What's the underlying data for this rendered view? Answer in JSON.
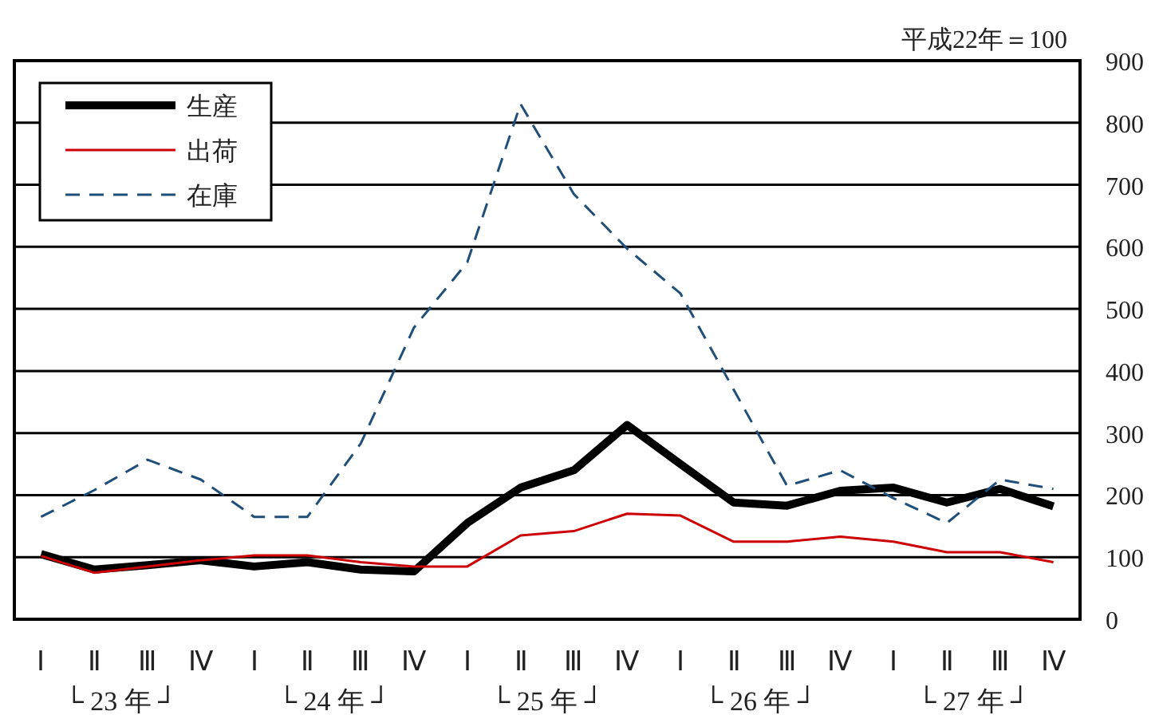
{
  "chart_data": {
    "type": "line",
    "categories": [
      "Ⅰ",
      "Ⅱ",
      "Ⅲ",
      "Ⅳ",
      "Ⅰ",
      "Ⅱ",
      "Ⅲ",
      "Ⅳ",
      "Ⅰ",
      "Ⅱ",
      "Ⅲ",
      "Ⅳ",
      "Ⅰ",
      "Ⅱ",
      "Ⅲ",
      "Ⅳ",
      "Ⅰ",
      "Ⅱ",
      "Ⅲ",
      "Ⅳ"
    ],
    "series": [
      {
        "name": "生産",
        "color": "#000000",
        "line_style": "solid",
        "values": [
          105,
          80,
          87,
          95,
          85,
          92,
          80,
          77,
          155,
          212,
          240,
          313,
          250,
          188,
          183,
          207,
          212,
          188,
          210,
          182
        ]
      },
      {
        "name": "出荷",
        "color": "#cc0000",
        "line_style": "solid",
        "values": [
          102,
          75,
          85,
          95,
          103,
          103,
          92,
          85,
          85,
          135,
          142,
          170,
          167,
          125,
          125,
          133,
          125,
          108,
          108,
          92
        ]
      },
      {
        "name": "在庫",
        "color": "#1f4e79",
        "line_style": "dashed",
        "values": [
          165,
          208,
          257,
          225,
          165,
          165,
          283,
          470,
          575,
          830,
          685,
          597,
          525,
          370,
          215,
          240,
          195,
          155,
          225,
          210
        ]
      }
    ],
    "ylim": [
      0,
      900
    ],
    "yticks": [
      0,
      100,
      200,
      300,
      400,
      500,
      600,
      700,
      800,
      900
    ],
    "grid": "y",
    "legend": "top left",
    "annotations": [
      "平成22年＝100",
      "└ 23 年 ┘",
      "└ 24 年 ┘",
      "└ 25 年 ┘",
      "└ 26 年 ┘",
      "└ 27 年 ┘"
    ]
  }
}
